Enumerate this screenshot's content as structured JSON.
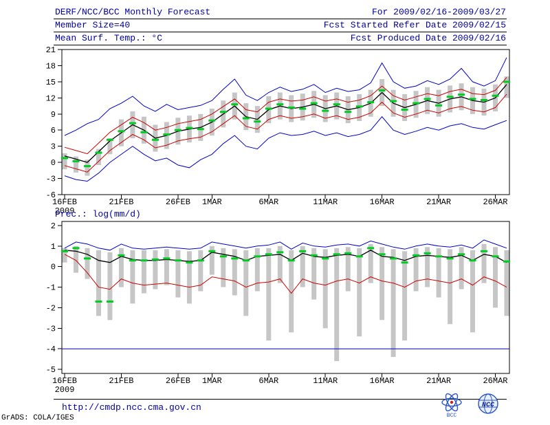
{
  "header": {
    "title": "DERF/NCC/BCC Monthly Forecast",
    "member_size": "Member Size=40",
    "temp_label": "Mean Surf. Temp.: °C",
    "for_dates": "For 2009/02/16-2009/03/27",
    "refer_date": "Fcst Started Refer Date 2009/02/15",
    "produced_date": "Fcst Produced Date 2009/02/16"
  },
  "prec_label": "Prec.: log(mm/d)",
  "footer": {
    "url": "http://cmdp.ncc.cma.gov.cn",
    "grads_credit": "GrADS: COLA/IGES",
    "logo_bcc": "BCC",
    "logo_ncc": "NCC"
  },
  "colors": {
    "header_text": "#0000a0",
    "axis": "#000000",
    "line_blue": "#0000c8",
    "line_red": "#cc0000",
    "line_black": "#000000",
    "mark_green": "#00cc22",
    "bar_gray": "#c6c6c6"
  },
  "chart_data": [
    {
      "id": "temp",
      "type": "line",
      "title": "Mean Surf. Temp.: °C",
      "ylim": [
        -6,
        21
      ],
      "yticks": [
        -6,
        -3,
        0,
        3,
        6,
        9,
        12,
        15,
        18,
        21
      ],
      "x": {
        "n": 40,
        "tick_days": [
          0,
          5,
          10,
          13,
          18,
          23,
          28,
          33,
          38
        ],
        "tick_labels": [
          "16FEB",
          "21FEB",
          "26FEB",
          "1MAR",
          "6MAR",
          "11MAR",
          "16MAR",
          "21MAR",
          "26MAR"
        ],
        "year_label": "2009"
      },
      "bars": {
        "name": "ensemble-spread",
        "color": "#c6c6c6",
        "low": [
          -1.3,
          -1.9,
          -2.5,
          -0.5,
          1.5,
          3.0,
          4.5,
          3.5,
          2.0,
          2.5,
          3.3,
          3.7,
          4.0,
          5.0,
          6.5,
          8.0,
          6.0,
          5.5,
          7.3,
          8.0,
          7.5,
          7.8,
          8.3,
          7.5,
          8.0,
          7.3,
          7.7,
          8.5,
          10.5,
          8.5,
          7.7,
          8.3,
          9.0,
          8.5,
          9.3,
          9.7,
          9.0,
          8.7,
          9.5,
          12.0
        ],
        "high": [
          1.7,
          1.1,
          0.5,
          2.5,
          4.5,
          8.0,
          9.5,
          8.5,
          7.0,
          7.5,
          8.3,
          8.7,
          9.0,
          10.0,
          11.5,
          13.0,
          11.0,
          10.5,
          12.3,
          13.0,
          12.5,
          12.8,
          13.3,
          12.5,
          13.0,
          12.3,
          12.7,
          13.5,
          15.5,
          13.5,
          12.7,
          13.3,
          14.0,
          13.5,
          14.3,
          14.7,
          14.0,
          13.7,
          14.5,
          16.0
        ]
      },
      "marks": {
        "name": "ensemble-median",
        "color": "#00cc22",
        "values": [
          0.8,
          0.2,
          -0.7,
          1.8,
          4.2,
          5.8,
          7.3,
          5.6,
          4.2,
          5.2,
          6.0,
          6.4,
          6.2,
          7.8,
          9.4,
          10.8,
          8.2,
          7.6,
          10.0,
          10.8,
          10.2,
          10.0,
          11.0,
          9.6,
          10.8,
          9.4,
          10.4,
          11.2,
          13.4,
          11.4,
          9.8,
          11.0,
          11.8,
          10.6,
          12.2,
          12.6,
          11.8,
          11.6,
          12.4,
          15.0
        ]
      },
      "series": [
        {
          "name": "upper-blue-envelope",
          "color": "#0000c8",
          "width": 1,
          "values": [
            5.0,
            6.0,
            7.2,
            8.0,
            10.0,
            11.0,
            12.3,
            10.5,
            9.5,
            10.8,
            9.8,
            10.2,
            10.6,
            11.5,
            13.6,
            15.5,
            12.5,
            11.5,
            13.0,
            14.0,
            13.2,
            13.6,
            14.5,
            13.0,
            13.8,
            13.2,
            13.5,
            14.8,
            18.5,
            15.0,
            13.8,
            14.2,
            15.2,
            14.5,
            15.5,
            17.5,
            15.0,
            14.2,
            15.2,
            19.5
          ]
        },
        {
          "name": "upper-red-envelope",
          "color": "#cc0000",
          "width": 1,
          "values": [
            2.8,
            2.2,
            1.6,
            3.6,
            5.6,
            7.0,
            8.4,
            7.4,
            6.0,
            6.5,
            7.2,
            7.6,
            8.0,
            9.0,
            10.4,
            11.8,
            9.8,
            9.4,
            11.2,
            11.8,
            11.4,
            11.6,
            12.2,
            11.4,
            11.8,
            11.2,
            11.6,
            12.4,
            14.2,
            12.4,
            11.6,
            12.2,
            12.8,
            12.4,
            13.2,
            13.6,
            12.8,
            12.6,
            13.4,
            15.8
          ]
        },
        {
          "name": "mean-black",
          "color": "#000000",
          "width": 1.3,
          "values": [
            1.2,
            0.6,
            0.0,
            2.0,
            4.0,
            5.5,
            7.0,
            6.0,
            4.5,
            5.0,
            5.8,
            6.2,
            6.5,
            7.5,
            9.0,
            10.5,
            8.5,
            8.0,
            9.8,
            10.5,
            10.0,
            10.3,
            10.8,
            10.0,
            10.5,
            9.8,
            10.2,
            11.0,
            13.0,
            11.0,
            10.2,
            10.8,
            11.5,
            11.0,
            11.8,
            12.2,
            11.5,
            11.2,
            12.0,
            14.5
          ]
        },
        {
          "name": "lower-red-envelope",
          "color": "#cc0000",
          "width": 1,
          "values": [
            -0.6,
            -1.2,
            -1.8,
            0.2,
            2.2,
            3.7,
            5.2,
            4.2,
            2.7,
            3.2,
            4.0,
            4.4,
            4.7,
            5.7,
            7.2,
            8.7,
            6.7,
            6.2,
            8.0,
            8.7,
            8.2,
            8.5,
            9.0,
            8.2,
            8.7,
            8.0,
            8.4,
            9.2,
            11.2,
            9.2,
            8.4,
            9.0,
            9.7,
            9.2,
            10.0,
            10.4,
            9.7,
            9.4,
            10.2,
            12.7
          ]
        },
        {
          "name": "lower-blue-envelope",
          "color": "#0000c8",
          "width": 1,
          "values": [
            -2.5,
            -3.2,
            -3.5,
            -2.0,
            0.0,
            1.5,
            3.0,
            1.5,
            0.3,
            0.8,
            -0.5,
            -1.0,
            0.5,
            1.5,
            3.5,
            5.0,
            3.0,
            2.5,
            4.5,
            5.5,
            5.0,
            5.2,
            5.8,
            5.0,
            5.5,
            4.8,
            5.2,
            6.0,
            8.5,
            6.0,
            5.2,
            5.8,
            6.5,
            6.0,
            6.8,
            7.2,
            6.5,
            6.2,
            7.0,
            7.8
          ]
        }
      ]
    },
    {
      "id": "prec",
      "type": "line",
      "title": "Prec.: log(mm/d)",
      "ylim": [
        -5,
        2
      ],
      "yticks": [
        -5,
        -4,
        -3,
        -2,
        -1,
        0,
        1,
        2
      ],
      "x": {
        "n": 40,
        "tick_days": [
          0,
          5,
          10,
          13,
          18,
          23,
          28,
          33,
          38
        ],
        "tick_labels": [
          "16FEB",
          "21FEB",
          "26FEB",
          "1MAR",
          "6MAR",
          "11MAR",
          "16MAR",
          "21MAR",
          "26MAR"
        ],
        "year_label": "2009"
      },
      "bars": {
        "name": "ensemble-spread",
        "color": "#c6c6c6",
        "low": [
          0.2,
          -0.3,
          -0.6,
          -2.4,
          -2.6,
          -1.0,
          -1.8,
          -1.3,
          -1.1,
          -0.9,
          -1.5,
          -1.8,
          -1.2,
          -0.4,
          -1.0,
          -1.4,
          -2.4,
          -1.2,
          -3.6,
          -0.8,
          -3.2,
          -1.0,
          -1.6,
          -3.0,
          -4.6,
          -1.2,
          -3.4,
          -0.8,
          -2.6,
          -4.4,
          -3.6,
          -1.2,
          -1.0,
          -1.5,
          -2.8,
          -1.1,
          -3.2,
          -0.8,
          -2.0,
          -2.4
        ],
        "high": [
          0.9,
          1.0,
          0.9,
          0.8,
          0.7,
          0.9,
          0.8,
          0.8,
          0.8,
          0.85,
          0.8,
          0.75,
          0.8,
          1.0,
          0.9,
          0.85,
          0.8,
          0.9,
          0.9,
          1.0,
          0.8,
          1.0,
          0.9,
          0.85,
          0.9,
          0.95,
          0.9,
          1.1,
          0.95,
          0.85,
          0.75,
          0.9,
          0.95,
          0.9,
          0.85,
          0.95,
          0.8,
          1.1,
          0.95,
          0.8
        ]
      },
      "marks": {
        "name": "ensemble-median",
        "color": "#00cc22",
        "values": [
          0.75,
          0.9,
          0.4,
          -1.7,
          -1.7,
          0.55,
          0.3,
          0.3,
          0.35,
          0.4,
          0.3,
          0.2,
          0.3,
          0.75,
          0.5,
          0.4,
          0.3,
          0.5,
          0.6,
          0.7,
          0.3,
          0.75,
          0.55,
          0.4,
          0.6,
          0.65,
          0.5,
          0.9,
          0.6,
          0.4,
          0.2,
          0.55,
          0.65,
          0.5,
          0.4,
          0.6,
          0.3,
          0.75,
          0.5,
          0.25
        ]
      },
      "series": [
        {
          "name": "upper-blue-envelope",
          "color": "#0000c8",
          "width": 1,
          "values": [
            0.9,
            1.2,
            1.1,
            0.9,
            0.8,
            1.1,
            0.9,
            0.85,
            0.9,
            0.95,
            0.9,
            0.85,
            0.9,
            1.2,
            1.1,
            1.0,
            0.9,
            1.0,
            1.05,
            1.2,
            0.85,
            1.15,
            1.0,
            0.95,
            1.05,
            1.1,
            1.0,
            1.25,
            1.1,
            0.95,
            0.85,
            1.0,
            1.1,
            1.0,
            0.95,
            1.05,
            0.9,
            1.3,
            1.1,
            0.9
          ]
        },
        {
          "name": "mean-black",
          "color": "#000000",
          "width": 1.3,
          "values": [
            0.8,
            0.75,
            0.6,
            0.3,
            0.2,
            0.5,
            0.35,
            0.3,
            0.3,
            0.35,
            0.3,
            0.25,
            0.3,
            0.7,
            0.6,
            0.5,
            0.3,
            0.5,
            0.55,
            0.6,
            0.3,
            0.65,
            0.5,
            0.45,
            0.55,
            0.6,
            0.5,
            0.8,
            0.5,
            0.45,
            0.3,
            0.5,
            0.55,
            0.5,
            0.45,
            0.55,
            0.3,
            0.6,
            0.5,
            0.2
          ]
        },
        {
          "name": "lower-red-envelope",
          "color": "#cc0000",
          "width": 1,
          "values": [
            0.6,
            0.3,
            -0.3,
            -1.0,
            -1.1,
            -0.6,
            -0.8,
            -0.9,
            -0.85,
            -0.8,
            -0.9,
            -1.0,
            -0.9,
            -0.5,
            -0.6,
            -0.7,
            -1.0,
            -0.8,
            -0.75,
            -0.6,
            -1.3,
            -0.6,
            -0.8,
            -0.9,
            -0.7,
            -0.6,
            -0.8,
            -0.5,
            -0.7,
            -0.8,
            -1.0,
            -0.7,
            -0.6,
            -0.7,
            -0.8,
            -0.6,
            -0.9,
            -0.5,
            -0.7,
            -1.0
          ]
        },
        {
          "name": "minimum-floor-blue",
          "color": "#0000c8",
          "width": 1,
          "full_width": true,
          "values": [
            -4.0
          ]
        }
      ]
    }
  ]
}
